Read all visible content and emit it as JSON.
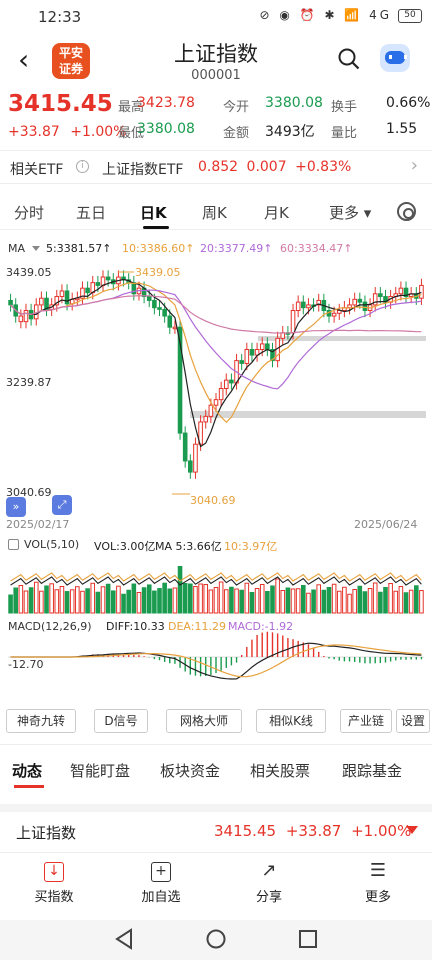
{
  "status_bar": {
    "time": "12:33",
    "battery": "50",
    "icons": "⊘ ◉ ⏰ ✱ 📶 4G"
  },
  "header": {
    "back": "‹",
    "logo_line1": "平安",
    "logo_line2": "证券",
    "title": "上证指数",
    "code": "000001"
  },
  "quote": {
    "price": "3415.45",
    "change": "+33.87",
    "change_pct": "+1.00%",
    "fields": [
      {
        "k": "最高",
        "v": "3423.78",
        "c": "red"
      },
      {
        "k": "今开",
        "v": "3380.08",
        "c": "green"
      },
      {
        "k": "换手",
        "v": "0.66%",
        "c": "dark"
      },
      {
        "k": "最低",
        "v": "3380.08",
        "c": "green"
      },
      {
        "k": "金额",
        "v": "3493亿",
        "c": "dark"
      },
      {
        "k": "量比",
        "v": "1.55",
        "c": "dark"
      }
    ]
  },
  "etf": {
    "label": "相关ETF",
    "name": "上证指数ETF",
    "price": "0.852",
    "change": "0.007",
    "pct": "+0.83%"
  },
  "period_tabs": [
    "分时",
    "五日",
    "日K",
    "周K",
    "月K",
    "更多 ▾"
  ],
  "ma_legend": {
    "ma": "MA",
    "ma5": "5:3381.57↑",
    "ma10": "10:3386.60↑",
    "ma20": "20:3377.49↑",
    "ma60": "60:3334.47↑"
  },
  "axis": {
    "top": "3439.05",
    "mid": "3239.87",
    "bottom": "3040.69",
    "start_date": "2025/02/17",
    "end_date": "2025/06/24",
    "hi_label": "3439.05",
    "lo_label": "3040.69"
  },
  "vol_legend": {
    "name": "VOL(5,10)",
    "vol": "VOL:3.00亿",
    "ma5": "MA 5:3.66亿",
    "ma10": "10:3.97亿"
  },
  "macd_legend": {
    "name": "MACD(12,26,9)",
    "diff": "DIFF:10.33",
    "dea": "DEA:11.29",
    "macd": "MACD:-1.92",
    "axis_low": "-12.70"
  },
  "tools": [
    "神奇九转",
    "D信号",
    "网格大师",
    "相似K线",
    "产业链",
    "设置"
  ],
  "section_tabs": [
    "动态",
    "智能盯盘",
    "板块资金",
    "相关股票",
    "跟踪基金"
  ],
  "index_row": {
    "name": "上证指数",
    "price": "3415.45",
    "change": "+33.87",
    "pct": "+1.00%"
  },
  "actions": [
    {
      "label": "买指数",
      "icon": "↓"
    },
    {
      "label": "加自选",
      "icon": "+"
    },
    {
      "label": "分享",
      "icon": "↗"
    },
    {
      "label": "更多",
      "icon": "☰"
    }
  ],
  "colors": {
    "up": "#e5332a",
    "down": "#1a9b4f",
    "ma5": "#222222",
    "ma10": "#e8a13c",
    "ma20": "#b06ad8",
    "ma60": "#d07aa5"
  },
  "chart_data": {
    "type": "candlestick",
    "ylim": [
      3040.69,
      3439.05
    ],
    "x_start": "2025/02/17",
    "x_end": "2025/06/24",
    "closes": [
      3380,
      3360,
      3350,
      3370,
      3355,
      3380,
      3392,
      3372,
      3380,
      3395,
      3405,
      3382,
      3390,
      3392,
      3410,
      3402,
      3420,
      3415,
      3430,
      3425,
      3418,
      3430,
      3425,
      3420,
      3400,
      3410,
      3395,
      3388,
      3375,
      3372,
      3360,
      3340,
      3340,
      3150,
      3100,
      3080,
      3130,
      3170,
      3180,
      3200,
      3210,
      3230,
      3245,
      3240,
      3280,
      3275,
      3300,
      3290,
      3300,
      3310,
      3300,
      3280,
      3320,
      3330,
      3330,
      3370,
      3385,
      3375,
      3380,
      3380,
      3388,
      3370,
      3360,
      3365,
      3370,
      3375,
      3380,
      3390,
      3385,
      3370,
      3380,
      3400,
      3395,
      3385,
      3395,
      3400,
      3410,
      3395,
      3400,
      3392,
      3415
    ],
    "up": [
      0,
      0,
      1,
      1,
      0,
      1,
      1,
      0,
      1,
      1,
      1,
      0,
      1,
      1,
      1,
      0,
      1,
      0,
      1,
      0,
      0,
      1,
      0,
      0,
      0,
      1,
      0,
      0,
      0,
      0,
      0,
      0,
      1,
      0,
      0,
      0,
      1,
      1,
      1,
      1,
      1,
      1,
      1,
      0,
      1,
      0,
      1,
      0,
      1,
      1,
      0,
      0,
      1,
      1,
      0,
      1,
      1,
      0,
      1,
      0,
      1,
      0,
      0,
      1,
      1,
      1,
      1,
      1,
      0,
      0,
      1,
      1,
      0,
      0,
      1,
      1,
      1,
      0,
      1,
      0,
      1
    ]
  }
}
